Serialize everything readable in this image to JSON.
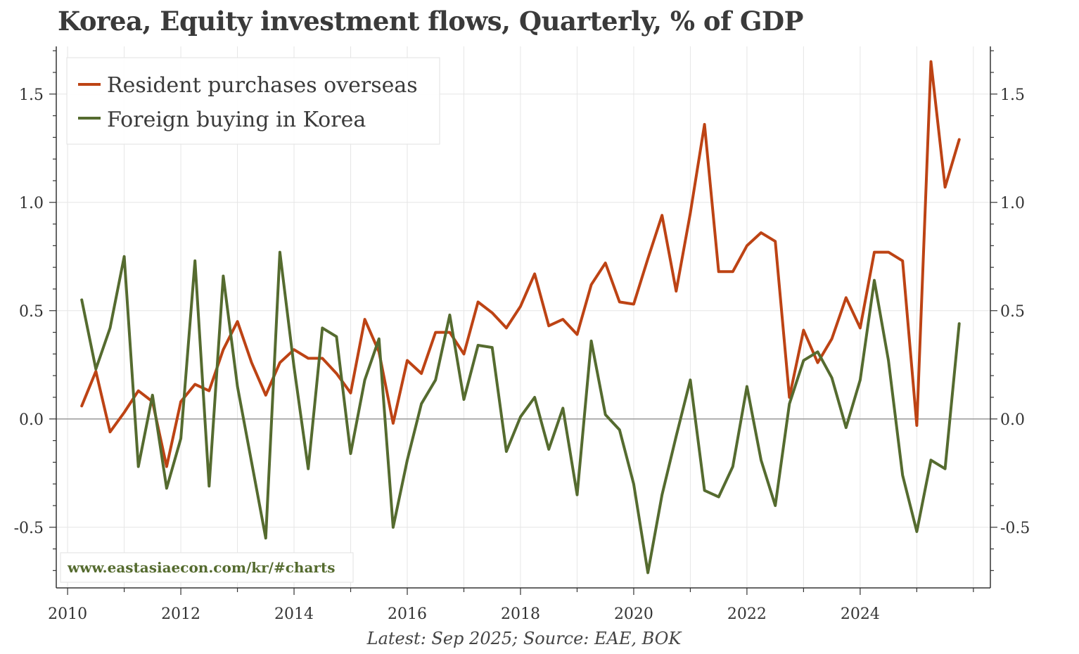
{
  "chart_data": {
    "type": "line",
    "title": "Korea, Equity investment flows, Quarterly, % of GDP",
    "footnote": "Latest: Sep 2025; Source: EAE, BOK",
    "watermark": "www.eastasiaecon.com/kr/#charts",
    "xlabel": "",
    "ylabel": "",
    "xlim": [
      2009.8,
      2026.3
    ],
    "ylim": [
      -0.78,
      1.72
    ],
    "x_ticks": [
      {
        "value": 2010,
        "label": "2010"
      },
      {
        "value": 2012,
        "label": "2012"
      },
      {
        "value": 2014,
        "label": "2014"
      },
      {
        "value": 2016,
        "label": "2016"
      },
      {
        "value": 2018,
        "label": "2018"
      },
      {
        "value": 2020,
        "label": "2020"
      },
      {
        "value": 2022,
        "label": "2022"
      },
      {
        "value": 2024,
        "label": "2024"
      }
    ],
    "y_ticks": [
      {
        "value": -0.5,
        "label": "-0.5"
      },
      {
        "value": 0.0,
        "label": "0.0"
      },
      {
        "value": 0.5,
        "label": "0.5"
      },
      {
        "value": 1.0,
        "label": "1.0"
      },
      {
        "value": 1.5,
        "label": "1.5"
      }
    ],
    "grid": true,
    "legend_position": "top-left",
    "x_start": 2010.25,
    "x_step": 0.25,
    "series": [
      {
        "name": "Resident purchases overseas",
        "color": "#bd4314",
        "values": [
          0.06,
          0.22,
          -0.06,
          0.03,
          0.13,
          0.08,
          -0.22,
          0.08,
          0.16,
          0.13,
          0.32,
          0.45,
          0.26,
          0.11,
          0.26,
          0.32,
          0.28,
          0.28,
          0.21,
          0.12,
          0.46,
          0.31,
          -0.02,
          0.27,
          0.21,
          0.4,
          0.4,
          0.3,
          0.54,
          0.49,
          0.42,
          0.52,
          0.67,
          0.43,
          0.46,
          0.39,
          0.62,
          0.72,
          0.54,
          0.53,
          0.74,
          0.94,
          0.59,
          0.95,
          1.36,
          0.68,
          0.68,
          0.8,
          0.86,
          0.82,
          0.1,
          0.41,
          0.26,
          0.37,
          0.56,
          0.42,
          0.77,
          0.77,
          0.73,
          -0.03,
          1.65,
          1.07,
          1.29
        ]
      },
      {
        "name": "Foreign buying in Korea",
        "color": "#556b2f",
        "values": [
          0.55,
          0.23,
          0.42,
          0.75,
          -0.22,
          0.11,
          -0.32,
          -0.09,
          0.73,
          -0.31,
          0.66,
          0.15,
          -0.2,
          -0.55,
          0.77,
          0.24,
          -0.23,
          0.42,
          0.38,
          -0.16,
          0.18,
          0.37,
          -0.5,
          -0.19,
          0.07,
          0.18,
          0.48,
          0.09,
          0.34,
          0.33,
          -0.15,
          0.01,
          0.1,
          -0.14,
          0.05,
          -0.35,
          0.36,
          0.02,
          -0.05,
          -0.3,
          -0.71,
          -0.35,
          -0.08,
          0.18,
          -0.33,
          -0.36,
          -0.22,
          0.15,
          -0.19,
          -0.4,
          0.07,
          0.27,
          0.31,
          0.19,
          -0.04,
          0.18,
          0.64,
          0.27,
          -0.26,
          -0.52,
          -0.19,
          -0.23,
          0.44
        ]
      }
    ]
  }
}
